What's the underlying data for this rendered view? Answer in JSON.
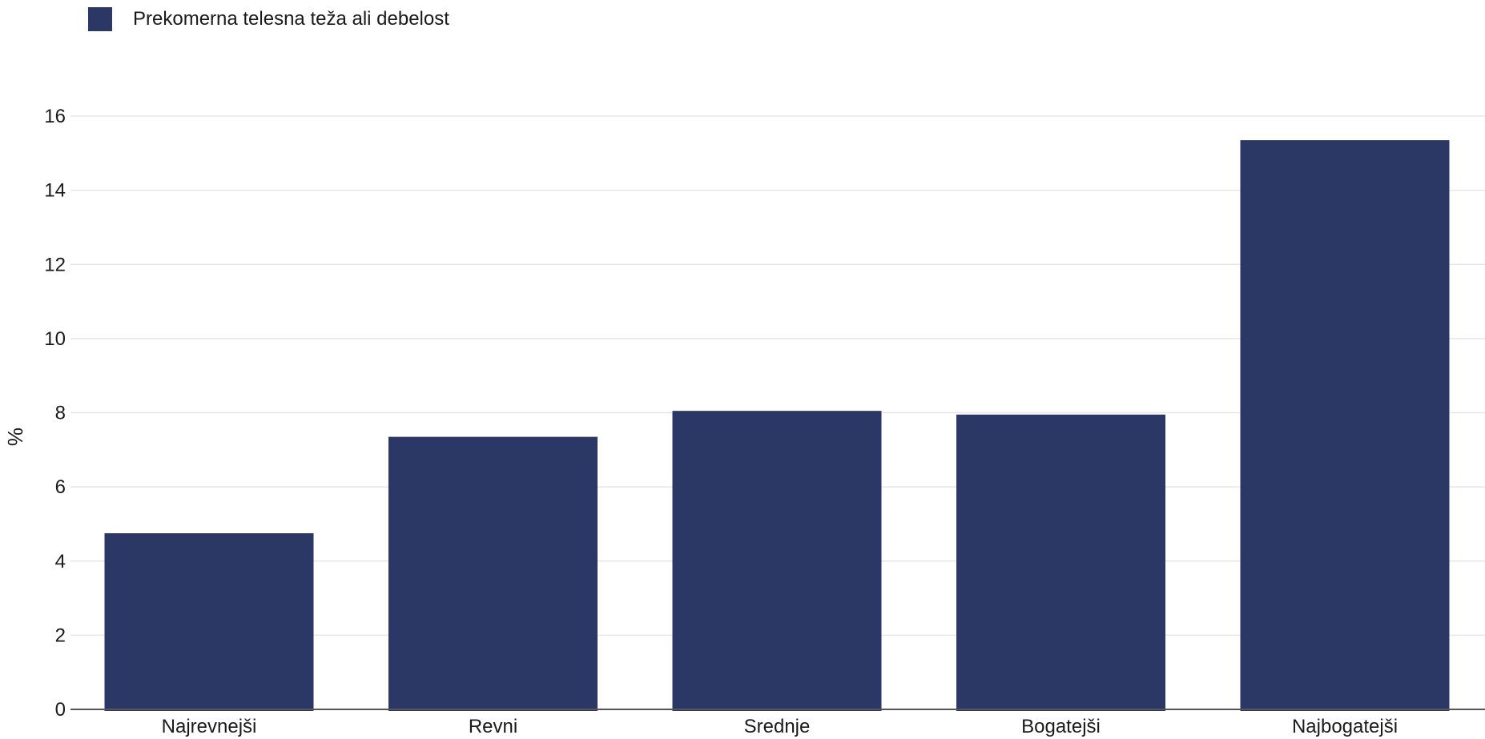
{
  "colors": {
    "bar": "#2b3764",
    "grid": "#e6e6e6",
    "axis": "#555555",
    "background": "#ffffff"
  },
  "chart_data": {
    "type": "bar",
    "categories": [
      "Najrevnejši",
      "Revni",
      "Srednje",
      "Bogatejši",
      "Najbogatejši"
    ],
    "series": [
      {
        "name": "Prekomerna telesna teža ali debelost",
        "values": [
          4.75,
          7.35,
          8.05,
          7.95,
          15.35
        ]
      }
    ],
    "ylabel": "%",
    "xlabel": "",
    "ylim": [
      0,
      16
    ],
    "yticks": [
      0,
      2,
      4,
      6,
      8,
      10,
      12,
      14,
      16
    ],
    "grid": true,
    "legend_position": "top-left"
  }
}
